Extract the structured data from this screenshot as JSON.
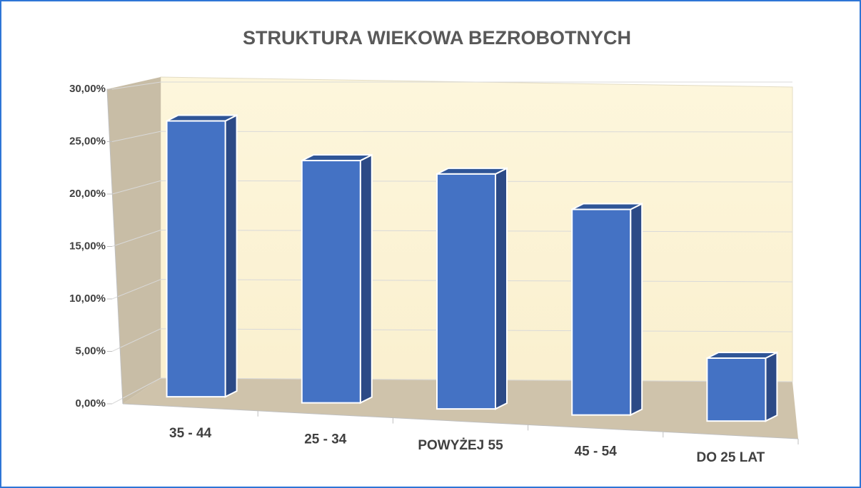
{
  "chart_data": {
    "type": "bar3d",
    "title": "STRUKTURA WIEKOWA BEZROBOTNYCH",
    "categories": [
      "35 - 44",
      "25 - 34",
      "POWYŻEJ 55",
      "45 - 54",
      "DO 25 LAT"
    ],
    "values": [
      26.3,
      23.1,
      22.4,
      19.6,
      6.0
    ],
    "color": "#4472c4",
    "ylim": [
      0,
      30
    ],
    "yticks": [
      {
        "value": 0,
        "label": "0,00%"
      },
      {
        "value": 5,
        "label": "5,00%"
      },
      {
        "value": 10,
        "label": "10,00%"
      },
      {
        "value": 15,
        "label": "15,00%"
      },
      {
        "value": 20,
        "label": "20,00%"
      },
      {
        "value": 25,
        "label": "25,00%"
      },
      {
        "value": 30,
        "label": "30,00%"
      }
    ],
    "grid": true
  }
}
